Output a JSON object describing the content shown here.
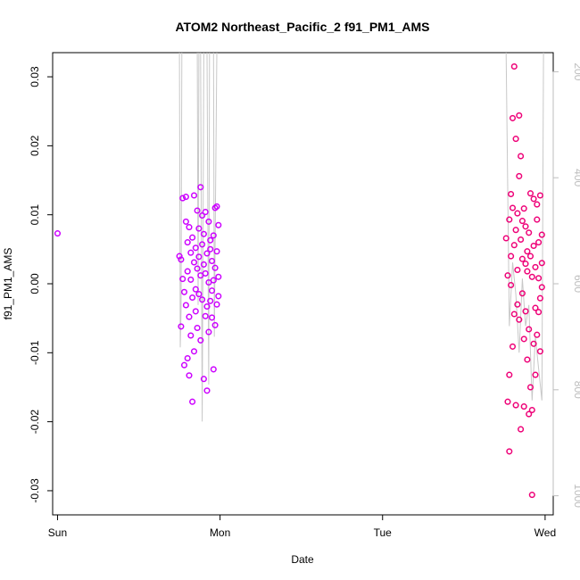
{
  "chart_data": {
    "type": "scatter",
    "title": "ATOM2 Northeast_Pacific_2 f91_PM1_AMS",
    "xlabel": "Date",
    "ylabel": "f91_PM1_AMS",
    "x_ticks": [
      "Sun",
      "Mon",
      "Tue",
      "Wed"
    ],
    "x_range": [
      -0.03,
      3.05
    ],
    "ylim": [
      -0.0335,
      0.0335
    ],
    "y_ticks": [
      -0.03,
      -0.02,
      -0.01,
      0.0,
      0.01,
      0.02,
      0.03
    ],
    "y_tick_labels": [
      "-0.03",
      "-0.02",
      "-0.01",
      "0.00",
      "0.01",
      "0.02",
      "0.03"
    ],
    "y2_range": [
      1036,
      164
    ],
    "y2_ticks": [
      200,
      400,
      600,
      800,
      1000
    ],
    "y2_tick_labels": [
      "200",
      "400",
      "600",
      "800",
      "1000"
    ],
    "y2_color": "#bdbdbd",
    "grid": false,
    "legend": "none",
    "colors": {
      "early": "#cc00ff",
      "late": "#ee0077",
      "altitude_line": "#c8c8c8",
      "axis": "#000000"
    },
    "series": [
      {
        "color": "#cc00ff",
        "points": [
          [
            0.0,
            0.0073
          ],
          [
            0.75,
            0.004
          ],
          [
            0.76,
            0.0035
          ],
          [
            0.76,
            -0.0062
          ],
          [
            0.77,
            0.0124
          ],
          [
            0.77,
            0.0007
          ],
          [
            0.78,
            -0.0012
          ],
          [
            0.78,
            -0.0118
          ],
          [
            0.79,
            0.0126
          ],
          [
            0.79,
            0.009
          ],
          [
            0.79,
            -0.0031
          ],
          [
            0.8,
            0.006
          ],
          [
            0.8,
            -0.0108
          ],
          [
            0.8,
            0.0018
          ],
          [
            0.81,
            0.0082
          ],
          [
            0.81,
            -0.0048
          ],
          [
            0.81,
            -0.0133
          ],
          [
            0.82,
            0.0006
          ],
          [
            0.82,
            0.0045
          ],
          [
            0.82,
            -0.0075
          ],
          [
            0.83,
            0.0067
          ],
          [
            0.83,
            -0.002
          ],
          [
            0.83,
            -0.0171
          ],
          [
            0.84,
            0.0031
          ],
          [
            0.84,
            0.0128
          ],
          [
            0.84,
            -0.0098
          ],
          [
            0.85,
            -0.0008
          ],
          [
            0.85,
            0.0052
          ],
          [
            0.85,
            -0.004
          ],
          [
            0.86,
            0.0022
          ],
          [
            0.86,
            0.0106
          ],
          [
            0.86,
            -0.0064
          ],
          [
            0.87,
            0.0039
          ],
          [
            0.87,
            -0.0015
          ],
          [
            0.87,
            0.008
          ],
          [
            0.88,
            0.014
          ],
          [
            0.88,
            0.0012
          ],
          [
            0.88,
            -0.0082
          ],
          [
            0.89,
            0.0099
          ],
          [
            0.89,
            -0.0023
          ],
          [
            0.89,
            0.0057
          ],
          [
            0.9,
            -0.0138
          ],
          [
            0.9,
            0.0028
          ],
          [
            0.9,
            0.0072
          ],
          [
            0.91,
            -0.0047
          ],
          [
            0.91,
            0.0015
          ],
          [
            0.91,
            0.0104
          ],
          [
            0.92,
            -0.0033
          ],
          [
            0.92,
            0.0044
          ],
          [
            0.92,
            -0.0155
          ],
          [
            0.93,
            0.009
          ],
          [
            0.93,
            0.0002
          ],
          [
            0.93,
            -0.007
          ],
          [
            0.94,
            0.005
          ],
          [
            0.94,
            -0.0025
          ],
          [
            0.94,
            0.0063
          ],
          [
            0.95,
            -0.001
          ],
          [
            0.95,
            -0.0049
          ],
          [
            0.95,
            0.0033
          ],
          [
            0.96,
            0.007
          ],
          [
            0.96,
            -0.0124
          ],
          [
            0.96,
            0.0005
          ],
          [
            0.97,
            0.011
          ],
          [
            0.97,
            -0.006
          ],
          [
            0.97,
            0.0023
          ],
          [
            0.98,
            0.0112
          ],
          [
            0.98,
            -0.003
          ],
          [
            0.98,
            0.0047
          ],
          [
            0.99,
            0.0085
          ],
          [
            0.99,
            -0.0018
          ],
          [
            0.99,
            0.001
          ]
        ]
      },
      {
        "color": "#ee0077",
        "points": [
          [
            2.76,
            0.0066
          ],
          [
            2.77,
            0.0012
          ],
          [
            2.77,
            -0.0171
          ],
          [
            2.78,
            0.0093
          ],
          [
            2.78,
            -0.0243
          ],
          [
            2.78,
            -0.0132
          ],
          [
            2.79,
            0.013
          ],
          [
            2.79,
            0.004
          ],
          [
            2.79,
            -0.0002
          ],
          [
            2.8,
            0.011
          ],
          [
            2.8,
            -0.0091
          ],
          [
            2.8,
            0.024
          ],
          [
            2.81,
            0.0315
          ],
          [
            2.81,
            0.0056
          ],
          [
            2.81,
            -0.0044
          ],
          [
            2.82,
            0.021
          ],
          [
            2.82,
            -0.0176
          ],
          [
            2.82,
            0.0078
          ],
          [
            2.83,
            0.0102
          ],
          [
            2.83,
            -0.003
          ],
          [
            2.83,
            0.002
          ],
          [
            2.84,
            0.0156
          ],
          [
            2.84,
            0.0244
          ],
          [
            2.84,
            -0.0052
          ],
          [
            2.85,
            0.0185
          ],
          [
            2.85,
            -0.0211
          ],
          [
            2.85,
            0.0064
          ],
          [
            2.86,
            0.0091
          ],
          [
            2.86,
            -0.0014
          ],
          [
            2.86,
            0.0036
          ],
          [
            2.87,
            -0.008
          ],
          [
            2.87,
            0.0109
          ],
          [
            2.87,
            -0.0178
          ],
          [
            2.88,
            0.0029
          ],
          [
            2.88,
            0.0083
          ],
          [
            2.88,
            -0.004
          ],
          [
            2.89,
            0.0047
          ],
          [
            2.89,
            -0.011
          ],
          [
            2.89,
            0.0018
          ],
          [
            2.9,
            -0.0066
          ],
          [
            2.9,
            0.0074
          ],
          [
            2.9,
            -0.0189
          ],
          [
            2.91,
            0.004
          ],
          [
            2.91,
            -0.015
          ],
          [
            2.91,
            0.0131
          ],
          [
            2.92,
            -0.0306
          ],
          [
            2.92,
            0.001
          ],
          [
            2.92,
            -0.0183
          ],
          [
            2.93,
            0.0123
          ],
          [
            2.93,
            -0.0087
          ],
          [
            2.93,
            0.0055
          ],
          [
            2.94,
            -0.0132
          ],
          [
            2.94,
            0.0024
          ],
          [
            2.94,
            -0.0035
          ],
          [
            2.95,
            0.0093
          ],
          [
            2.95,
            -0.0074
          ],
          [
            2.95,
            0.0115
          ],
          [
            2.96,
            -0.0041
          ],
          [
            2.96,
            0.0008
          ],
          [
            2.96,
            0.006
          ],
          [
            2.97,
            -0.0021
          ],
          [
            2.97,
            0.0128
          ],
          [
            2.97,
            -0.0098
          ],
          [
            2.98,
            0.003
          ],
          [
            2.98,
            -0.0005
          ],
          [
            2.98,
            0.0071
          ]
        ]
      }
    ],
    "altitude_line": {
      "color": "#c8c8c8",
      "segments": [
        [
          [
            0.75,
            164
          ],
          [
            0.755,
            720
          ],
          [
            0.76,
            650
          ],
          [
            0.765,
            164
          ]
        ],
        [
          [
            0.86,
            164
          ],
          [
            0.865,
            640
          ],
          [
            0.87,
            164
          ]
        ],
        [
          [
            0.88,
            164
          ],
          [
            0.89,
            860
          ],
          [
            0.9,
            164
          ]
        ],
        [
          [
            0.92,
            164
          ],
          [
            0.93,
            790
          ],
          [
            0.935,
            164
          ]
        ],
        [
          [
            0.96,
            164
          ],
          [
            0.965,
            700
          ],
          [
            0.97,
            520
          ],
          [
            0.98,
            164
          ]
        ],
        [
          [
            2.76,
            164
          ],
          [
            2.78,
            680
          ],
          [
            2.8,
            560
          ],
          [
            2.82,
            620
          ],
          [
            2.84,
            730
          ],
          [
            2.86,
            590
          ],
          [
            2.88,
            680
          ],
          [
            2.9,
            640
          ],
          [
            2.92,
            820
          ],
          [
            2.94,
            700
          ],
          [
            2.96,
            760
          ],
          [
            2.98,
            820
          ],
          [
            2.99,
            164
          ]
        ]
      ]
    }
  }
}
